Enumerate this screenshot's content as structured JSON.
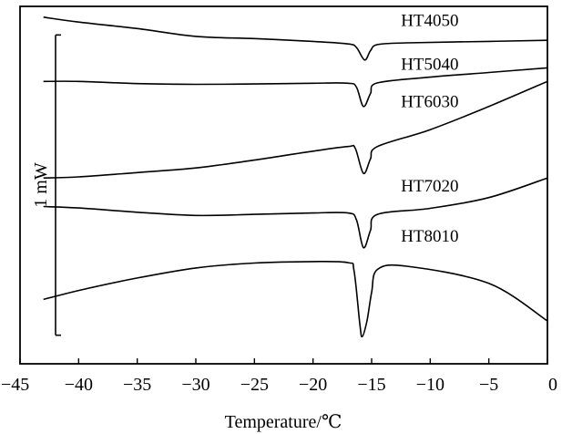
{
  "chart_data": {
    "type": "line",
    "title": "",
    "xlabel": "Temperature/℃",
    "ylabel": "",
    "xlim": [
      -45,
      0
    ],
    "x_ticks": [
      -45,
      -40,
      -35,
      -30,
      -25,
      -20,
      -15,
      -10,
      -5,
      0
    ],
    "x_tick_labels": [
      "−45",
      "−40",
      "−35",
      "−30",
      "−25",
      "−20",
      "−15",
      "−10",
      "−5",
      "0"
    ],
    "ylim": [
      0,
      100
    ],
    "grid": false,
    "scale_bar": {
      "label": "1 mW",
      "y_top": 92,
      "y_bottom": 8
    },
    "series": [
      {
        "name": "HT4050",
        "points": [
          [
            -43,
            97
          ],
          [
            -40,
            95.6
          ],
          [
            -35,
            93.8
          ],
          [
            -30,
            91.6
          ],
          [
            -25,
            91
          ],
          [
            -20,
            90.2
          ],
          [
            -17,
            89.5
          ],
          [
            -16.3,
            88.5
          ],
          [
            -15.6,
            85
          ],
          [
            -15.1,
            87.6
          ],
          [
            -14.5,
            89.3
          ],
          [
            -12,
            89.8
          ],
          [
            -5,
            90.2
          ],
          [
            0,
            90.5
          ]
        ]
      },
      {
        "name": "HT5040",
        "points": [
          [
            -43,
            79
          ],
          [
            -40,
            79
          ],
          [
            -35,
            78.4
          ],
          [
            -30,
            78.2
          ],
          [
            -25,
            78.3
          ],
          [
            -20,
            78.5
          ],
          [
            -17,
            78.5
          ],
          [
            -16.3,
            77.4
          ],
          [
            -15.7,
            72
          ],
          [
            -15.1,
            75.6
          ],
          [
            -14.5,
            78.6
          ],
          [
            -10,
            80.2
          ],
          [
            -5,
            81.5
          ],
          [
            0,
            82.8
          ]
        ]
      },
      {
        "name": "HT6030",
        "points": [
          [
            -43,
            52
          ],
          [
            -40,
            52.3
          ],
          [
            -35,
            53.5
          ],
          [
            -30,
            54.8
          ],
          [
            -25,
            57
          ],
          [
            -20,
            59.5
          ],
          [
            -17,
            60.8
          ],
          [
            -16.4,
            60.3
          ],
          [
            -15.7,
            53.3
          ],
          [
            -15.1,
            57.3
          ],
          [
            -14.5,
            60.8
          ],
          [
            -10,
            65.5
          ],
          [
            -5,
            72
          ],
          [
            0,
            79
          ]
        ]
      },
      {
        "name": "HT7020",
        "points": [
          [
            -43,
            44
          ],
          [
            -40,
            43.6
          ],
          [
            -35,
            42.4
          ],
          [
            -30,
            41.5
          ],
          [
            -25,
            41.8
          ],
          [
            -20,
            42.2
          ],
          [
            -17,
            42.2
          ],
          [
            -16.3,
            40.3
          ],
          [
            -15.7,
            32.5
          ],
          [
            -15.1,
            37.3
          ],
          [
            -14.5,
            41.8
          ],
          [
            -10,
            43.5
          ],
          [
            -5,
            46.5
          ],
          [
            0,
            52
          ]
        ]
      },
      {
        "name": "HT8010",
        "points": [
          [
            -43,
            18
          ],
          [
            -40,
            20.5
          ],
          [
            -35,
            24
          ],
          [
            -30,
            26.8
          ],
          [
            -25,
            28.2
          ],
          [
            -20,
            28.6
          ],
          [
            -17,
            28.3
          ],
          [
            -16.5,
            26
          ],
          [
            -16,
            11
          ],
          [
            -15.8,
            7.6
          ],
          [
            -15.4,
            12
          ],
          [
            -15,
            20
          ],
          [
            -14.5,
            26.4
          ],
          [
            -12,
            27.3
          ],
          [
            -5,
            22.5
          ],
          [
            0,
            12
          ]
        ]
      }
    ],
    "annotations": [
      {
        "text": "HT4050",
        "x": -12.5,
        "y": 94.5
      },
      {
        "text": "HT5040",
        "x": -12.5,
        "y": 82.3
      },
      {
        "text": "HT6030",
        "x": -12.5,
        "y": 71.8
      },
      {
        "text": "HT7020",
        "x": -12.5,
        "y": 48.2
      },
      {
        "text": "HT8010",
        "x": -12.5,
        "y": 34.2
      }
    ]
  }
}
